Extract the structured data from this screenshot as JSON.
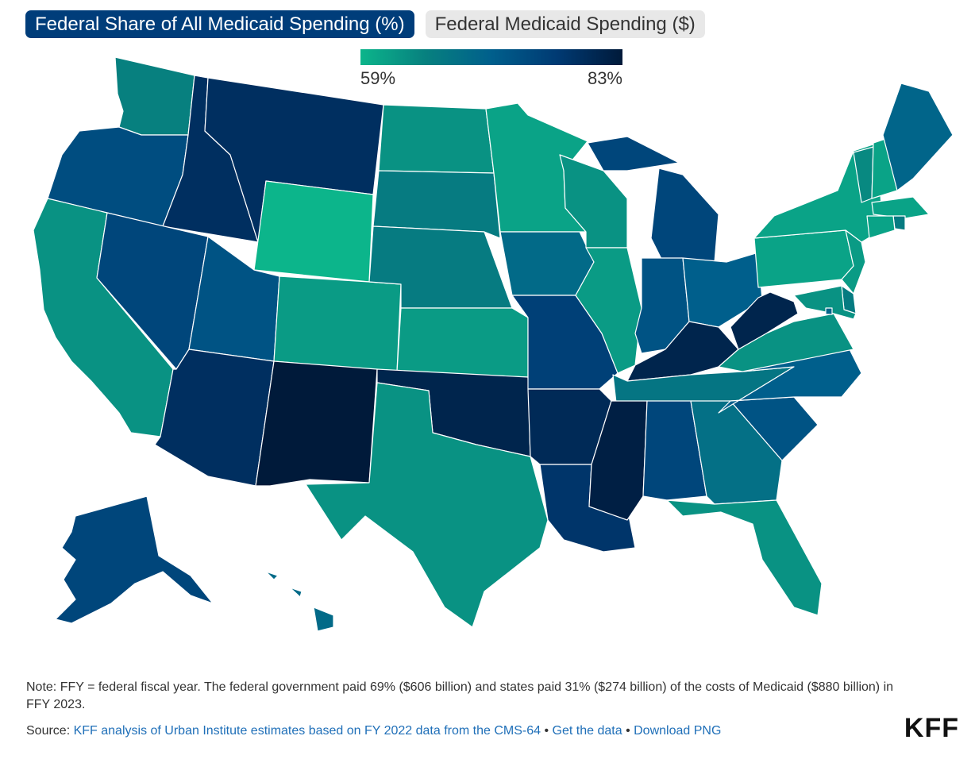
{
  "tabs": [
    {
      "label": "Federal Share of All Medicaid Spending (%)",
      "active": true
    },
    {
      "label": "Federal Medicaid Spending ($)",
      "active": false
    }
  ],
  "legend": {
    "min_label": "59%",
    "max_label": "83%",
    "min_value": 59,
    "max_value": 83,
    "colors": [
      "#0cb58b",
      "#07807f",
      "#005f8c",
      "#003a73",
      "#001a3a"
    ]
  },
  "chart_data": {
    "type": "choropleth",
    "unit": "%",
    "states": [
      {
        "state": "WA",
        "value": 65
      },
      {
        "state": "OR",
        "value": 74
      },
      {
        "state": "CA",
        "value": 63
      },
      {
        "state": "ID",
        "value": 79
      },
      {
        "state": "NV",
        "value": 75
      },
      {
        "state": "MT",
        "value": 79
      },
      {
        "state": "WY",
        "value": 59
      },
      {
        "state": "UT",
        "value": 73
      },
      {
        "state": "AZ",
        "value": 79
      },
      {
        "state": "CO",
        "value": 62
      },
      {
        "state": "NM",
        "value": 83
      },
      {
        "state": "ND",
        "value": 63
      },
      {
        "state": "SD",
        "value": 66
      },
      {
        "state": "NE",
        "value": 66
      },
      {
        "state": "KS",
        "value": 62
      },
      {
        "state": "OK",
        "value": 81
      },
      {
        "state": "TX",
        "value": 63
      },
      {
        "state": "MN",
        "value": 61
      },
      {
        "state": "IA",
        "value": 69
      },
      {
        "state": "MO",
        "value": 76
      },
      {
        "state": "AR",
        "value": 80
      },
      {
        "state": "LA",
        "value": 78
      },
      {
        "state": "WI",
        "value": 63
      },
      {
        "state": "IL",
        "value": 62
      },
      {
        "state": "MI",
        "value": 75
      },
      {
        "state": "IN",
        "value": 73
      },
      {
        "state": "OH",
        "value": 71
      },
      {
        "state": "KY",
        "value": 81
      },
      {
        "state": "TN",
        "value": 67
      },
      {
        "state": "MS",
        "value": 82
      },
      {
        "state": "AL",
        "value": 75
      },
      {
        "state": "GA",
        "value": 68
      },
      {
        "state": "FL",
        "value": 63
      },
      {
        "state": "SC",
        "value": 73
      },
      {
        "state": "NC",
        "value": 71
      },
      {
        "state": "VA",
        "value": 63
      },
      {
        "state": "WV",
        "value": 81
      },
      {
        "state": "PA",
        "value": 61
      },
      {
        "state": "NY",
        "value": 61
      },
      {
        "state": "VT",
        "value": 64
      },
      {
        "state": "NH",
        "value": 61
      },
      {
        "state": "ME",
        "value": 70
      },
      {
        "state": "MA",
        "value": 61
      },
      {
        "state": "RI",
        "value": 66
      },
      {
        "state": "CT",
        "value": 61
      },
      {
        "state": "NJ",
        "value": 62
      },
      {
        "state": "DE",
        "value": 66
      },
      {
        "state": "MD",
        "value": 63
      },
      {
        "state": "DC",
        "value": 70
      },
      {
        "state": "AK",
        "value": 75
      },
      {
        "state": "HI",
        "value": 69
      }
    ]
  },
  "footer": {
    "note": "Note: FFY = federal fiscal year. The federal government paid 69% ($606 billion) and states paid 31% ($274 billion) of the costs of Medicaid ($880 billion) in FFY 2023.",
    "source_prefix": "Source:",
    "source_link": "KFF analysis of Urban Institute estimates based on FY 2022 data from the CMS-64",
    "get_data": "Get the data",
    "download": "Download PNG",
    "separator": "•",
    "logo": "KFF"
  }
}
